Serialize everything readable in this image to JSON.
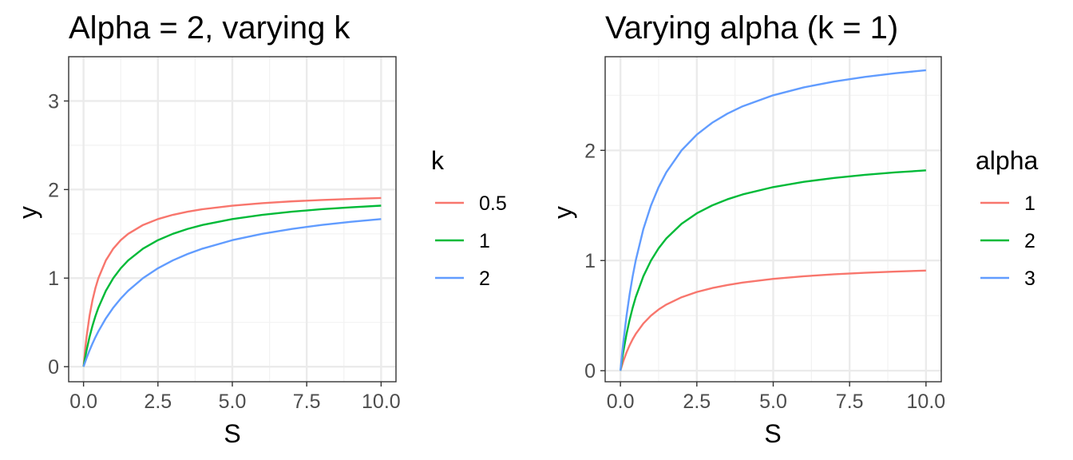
{
  "chart_data": [
    {
      "type": "line",
      "title": "Alpha = 2, varying k",
      "xlabel": "S",
      "ylabel": "y",
      "xlim": [
        -0.5,
        10.5
      ],
      "ylim": [
        -0.17,
        3.5
      ],
      "x_ticks": [
        0,
        2.5,
        5,
        7.5,
        10
      ],
      "x_tick_labels": [
        "0.0",
        "2.5",
        "5.0",
        "7.5",
        "10.0"
      ],
      "y_ticks": [
        0,
        1,
        2,
        3
      ],
      "y_tick_labels": [
        "0",
        "1",
        "2",
        "3"
      ],
      "grid": true,
      "legend_title": "k",
      "legend_position": "right",
      "x": [
        0,
        0.05,
        0.1,
        0.2,
        0.3,
        0.4,
        0.5,
        0.75,
        1,
        1.25,
        1.5,
        2,
        2.5,
        3,
        3.5,
        4,
        5,
        6,
        7,
        8,
        9,
        10
      ],
      "series": [
        {
          "name": "0.5",
          "color": "#F8766D",
          "values": [
            0,
            0.1818,
            0.3333,
            0.5714,
            0.75,
            0.8889,
            1.0,
            1.2,
            1.3333,
            1.4286,
            1.5,
            1.6,
            1.6667,
            1.7143,
            1.75,
            1.7778,
            1.8182,
            1.8462,
            1.8667,
            1.8824,
            1.8947,
            1.9048
          ]
        },
        {
          "name": "1",
          "color": "#00BA38",
          "values": [
            0,
            0.0952,
            0.1818,
            0.3333,
            0.4615,
            0.5714,
            0.6667,
            0.8571,
            1.0,
            1.1111,
            1.2,
            1.3333,
            1.4286,
            1.5,
            1.5556,
            1.6,
            1.6667,
            1.7143,
            1.75,
            1.7778,
            1.8,
            1.8182
          ]
        },
        {
          "name": "2",
          "color": "#619CFF",
          "values": [
            0,
            0.0488,
            0.0952,
            0.1818,
            0.2609,
            0.3333,
            0.4,
            0.5455,
            0.6667,
            0.7692,
            0.8571,
            1.0,
            1.1111,
            1.2,
            1.2727,
            1.3333,
            1.4286,
            1.5,
            1.5556,
            1.6,
            1.6364,
            1.6667
          ]
        }
      ]
    },
    {
      "type": "line",
      "title": "Varying alpha (k = 1)",
      "xlabel": "S",
      "ylabel": "y",
      "xlim": [
        -0.5,
        10.5
      ],
      "ylim": [
        -0.1,
        2.85
      ],
      "x_ticks": [
        0,
        2.5,
        5,
        7.5,
        10
      ],
      "x_tick_labels": [
        "0.0",
        "2.5",
        "5.0",
        "7.5",
        "10.0"
      ],
      "y_ticks": [
        0,
        1,
        2
      ],
      "y_tick_labels": [
        "0",
        "1",
        "2"
      ],
      "grid": true,
      "legend_title": "alpha",
      "legend_position": "right",
      "x": [
        0,
        0.05,
        0.1,
        0.2,
        0.3,
        0.4,
        0.5,
        0.75,
        1,
        1.25,
        1.5,
        2,
        2.5,
        3,
        3.5,
        4,
        5,
        6,
        7,
        8,
        9,
        10
      ],
      "series": [
        {
          "name": "1",
          "color": "#F8766D",
          "values": [
            0,
            0.0476,
            0.0909,
            0.1667,
            0.2308,
            0.2857,
            0.3333,
            0.4286,
            0.5,
            0.5556,
            0.6,
            0.6667,
            0.7143,
            0.75,
            0.7778,
            0.8,
            0.8333,
            0.8571,
            0.875,
            0.8889,
            0.9,
            0.9091
          ]
        },
        {
          "name": "2",
          "color": "#00BA38",
          "values": [
            0,
            0.0952,
            0.1818,
            0.3333,
            0.4615,
            0.5714,
            0.6667,
            0.8571,
            1.0,
            1.1111,
            1.2,
            1.3333,
            1.4286,
            1.5,
            1.5556,
            1.6,
            1.6667,
            1.7143,
            1.75,
            1.7778,
            1.8,
            1.8182
          ]
        },
        {
          "name": "3",
          "color": "#619CFF",
          "values": [
            0,
            0.1429,
            0.2727,
            0.5,
            0.6923,
            0.8571,
            1.0,
            1.2857,
            1.5,
            1.6667,
            1.8,
            2.0,
            2.1429,
            2.25,
            2.3333,
            2.4,
            2.5,
            2.5714,
            2.625,
            2.6667,
            2.7,
            2.7273
          ]
        }
      ]
    }
  ]
}
